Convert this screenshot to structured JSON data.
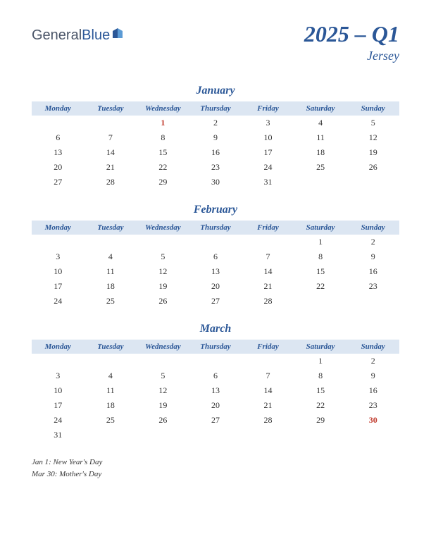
{
  "logo": {
    "part1": "General",
    "part2": "Blue"
  },
  "title": "2025 – Q1",
  "subtitle": "Jersey",
  "colors": {
    "brand": "#2b5797",
    "header_bg": "#dce6f2",
    "holiday": "#c0392b",
    "text": "#333333",
    "background": "#ffffff"
  },
  "day_headers": [
    "Monday",
    "Tuesday",
    "Wednesday",
    "Thursday",
    "Friday",
    "Saturday",
    "Sunday"
  ],
  "months": [
    {
      "name": "January",
      "weeks": [
        [
          "",
          "",
          "1",
          "2",
          "3",
          "4",
          "5"
        ],
        [
          "6",
          "7",
          "8",
          "9",
          "10",
          "11",
          "12"
        ],
        [
          "13",
          "14",
          "15",
          "16",
          "17",
          "18",
          "19"
        ],
        [
          "20",
          "21",
          "22",
          "23",
          "24",
          "25",
          "26"
        ],
        [
          "27",
          "28",
          "29",
          "30",
          "31",
          "",
          ""
        ]
      ],
      "holidays": [
        "1"
      ]
    },
    {
      "name": "February",
      "weeks": [
        [
          "",
          "",
          "",
          "",
          "",
          "1",
          "2"
        ],
        [
          "3",
          "4",
          "5",
          "6",
          "7",
          "8",
          "9"
        ],
        [
          "10",
          "11",
          "12",
          "13",
          "14",
          "15",
          "16"
        ],
        [
          "17",
          "18",
          "19",
          "20",
          "21",
          "22",
          "23"
        ],
        [
          "24",
          "25",
          "26",
          "27",
          "28",
          "",
          ""
        ]
      ],
      "holidays": []
    },
    {
      "name": "March",
      "weeks": [
        [
          "",
          "",
          "",
          "",
          "",
          "1",
          "2"
        ],
        [
          "3",
          "4",
          "5",
          "6",
          "7",
          "8",
          "9"
        ],
        [
          "10",
          "11",
          "12",
          "13",
          "14",
          "15",
          "16"
        ],
        [
          "17",
          "18",
          "19",
          "20",
          "21",
          "22",
          "23"
        ],
        [
          "24",
          "25",
          "26",
          "27",
          "28",
          "29",
          "30"
        ],
        [
          "31",
          "",
          "",
          "",
          "",
          "",
          ""
        ]
      ],
      "holidays": [
        "30"
      ]
    }
  ],
  "holiday_list": [
    "Jan 1: New Year's Day",
    "Mar 30: Mother's Day"
  ]
}
